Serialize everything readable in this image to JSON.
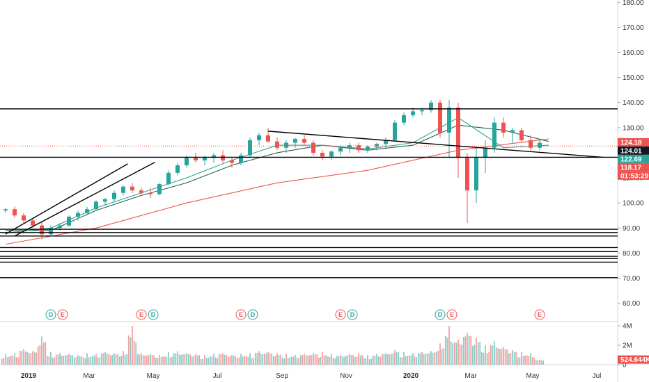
{
  "chart_data": {
    "type": "candlestick",
    "price_axis": {
      "ticks": [
        "180.00",
        "170.00",
        "160.00",
        "150.00",
        "140.00",
        "130.00",
        "120.00",
        "110.00",
        "100.00",
        "90.00",
        "80.00",
        "70.00",
        "60.00"
      ],
      "tick_values": [
        180,
        170,
        160,
        150,
        140,
        130,
        120,
        110,
        100,
        90,
        80,
        70,
        60
      ],
      "ylim": [
        52.7,
        180.9
      ]
    },
    "volume_axis": {
      "ticks": [
        "4M",
        "2M",
        "0"
      ],
      "tick_values": [
        4000000,
        2000000,
        0
      ],
      "ylim": [
        0,
        4300000
      ]
    },
    "time_axis": {
      "labels": [
        "2019",
        "Mar",
        "May",
        "Jul",
        "Sep",
        "Nov",
        "2020",
        "Mar",
        "May",
        "Jul"
      ],
      "bold": [
        true,
        false,
        false,
        false,
        false,
        false,
        true,
        false,
        false,
        false
      ]
    },
    "price_labels": [
      {
        "text": "124.18",
        "value": 124.18,
        "color": "#ef5350"
      },
      {
        "text": "124.01",
        "value": 124.01,
        "color": "#131722"
      },
      {
        "text": "122.69",
        "value": 122.69,
        "color": "#26a69a"
      },
      {
        "text": "118.17",
        "value": 118.17,
        "color": "#ef5350"
      },
      {
        "text": "01:53:29",
        "value": 113.6,
        "color": "#ef5350"
      }
    ],
    "volume_label": {
      "text": "524.644K",
      "value": 524644,
      "color": "#ef5350"
    },
    "horizontal_levels": [
      137.5,
      118.2,
      89.5,
      88.2,
      86.8,
      82.2,
      80.6,
      78.7,
      77.8,
      76.4,
      70.2
    ],
    "trendlines": [
      {
        "from": [
          0.0,
          87.6
        ],
        "to": [
          13.5,
          115.6
        ]
      },
      {
        "from": [
          1.0,
          86.8
        ],
        "to": [
          16.5,
          116.2
        ]
      },
      {
        "from": [
          29.0,
          128.6
        ],
        "to": [
          66.0,
          118.2
        ]
      }
    ],
    "events": [
      {
        "letters": [
          "D",
          "E"
        ],
        "x": 5.0
      },
      {
        "letters": [
          "E",
          "D"
        ],
        "x": 15.0
      },
      {
        "letters": [
          "E",
          "D"
        ],
        "x": 26.0
      },
      {
        "letters": [
          "E",
          "D"
        ],
        "x": 37.0
      },
      {
        "letters": [
          "D",
          "E"
        ],
        "x": 48.0
      },
      {
        "letters": [
          "E"
        ],
        "x": 59.0
      }
    ],
    "candles_weekly": [
      [
        97.0,
        98.0,
        96.0,
        97.5
      ],
      [
        97.5,
        98.5,
        94.0,
        95.0
      ],
      [
        95.0,
        96.0,
        92.0,
        93.0
      ],
      [
        93.0,
        94.0,
        90.0,
        91.0
      ],
      [
        91.0,
        92.5,
        85.5,
        87.5
      ],
      [
        87.5,
        91.0,
        87.0,
        90.0
      ],
      [
        90.0,
        92.0,
        89.0,
        91.0
      ],
      [
        91.0,
        95.0,
        90.5,
        94.5
      ],
      [
        94.5,
        97.0,
        93.0,
        96.0
      ],
      [
        96.0,
        98.5,
        95.0,
        97.5
      ],
      [
        97.5,
        101.0,
        97.0,
        100.5
      ],
      [
        100.5,
        102.0,
        99.0,
        101.5
      ],
      [
        101.5,
        105.0,
        100.5,
        104.0
      ],
      [
        104.0,
        107.0,
        103.0,
        106.5
      ],
      [
        106.5,
        108.0,
        104.0,
        105.0
      ],
      [
        105.0,
        106.0,
        103.0,
        104.0
      ],
      [
        104.0,
        106.0,
        102.0,
        103.5
      ],
      [
        103.5,
        108.0,
        103.0,
        107.5
      ],
      [
        107.5,
        113.0,
        107.0,
        112.0
      ],
      [
        112.0,
        116.0,
        111.0,
        115.0
      ],
      [
        115.0,
        119.0,
        114.0,
        118.0
      ],
      [
        118.0,
        120.0,
        116.0,
        117.0
      ],
      [
        117.0,
        119.0,
        115.0,
        118.0
      ],
      [
        118.0,
        120.0,
        116.0,
        119.0
      ],
      [
        119.0,
        121.0,
        116.0,
        117.0
      ],
      [
        117.0,
        118.0,
        114.0,
        116.0
      ],
      [
        116.0,
        120.0,
        115.0,
        119.0
      ],
      [
        119.0,
        126.0,
        118.0,
        125.0
      ],
      [
        125.0,
        128.0,
        123.0,
        127.0
      ],
      [
        127.0,
        130.0,
        124.0,
        124.5
      ],
      [
        124.5,
        126.0,
        121.0,
        122.0
      ],
      [
        122.0,
        125.0,
        120.0,
        124.0
      ],
      [
        124.0,
        126.0,
        122.0,
        125.5
      ],
      [
        125.5,
        127.0,
        123.0,
        124.0
      ],
      [
        124.0,
        125.0,
        119.0,
        120.0
      ],
      [
        120.0,
        121.0,
        117.0,
        118.5
      ],
      [
        118.5,
        121.0,
        117.0,
        120.5
      ],
      [
        120.5,
        123.0,
        119.0,
        122.0
      ],
      [
        122.0,
        124.0,
        120.0,
        123.0
      ],
      [
        123.0,
        124.0,
        120.0,
        121.0
      ],
      [
        121.0,
        123.0,
        120.0,
        122.5
      ],
      [
        122.5,
        124.0,
        121.0,
        123.5
      ],
      [
        123.5,
        126.0,
        122.0,
        125.0
      ],
      [
        125.0,
        133.0,
        124.5,
        132.0
      ],
      [
        132.0,
        136.0,
        131.0,
        135.0
      ],
      [
        135.0,
        138.0,
        134.0,
        136.5
      ],
      [
        136.5,
        138.0,
        135.0,
        137.0
      ],
      [
        137.0,
        141.0,
        136.0,
        140.0
      ],
      [
        140.0,
        141.0,
        126.0,
        128.0
      ],
      [
        128.0,
        141.0,
        118.0,
        138.0
      ],
      [
        138.0,
        140.0,
        110.0,
        118.0
      ],
      [
        118.0,
        120.0,
        92.0,
        105.0
      ],
      [
        105.0,
        122.0,
        100.0,
        118.0
      ],
      [
        118.0,
        125.0,
        112.0,
        122.0
      ],
      [
        122.0,
        134.0,
        120.0,
        132.0
      ],
      [
        132.0,
        134.0,
        126.0,
        128.0
      ],
      [
        128.0,
        130.0,
        124.0,
        129.0
      ],
      [
        129.0,
        130.0,
        124.0,
        125.0
      ],
      [
        125.0,
        127.0,
        121.0,
        122.0
      ],
      [
        122.0,
        125.5,
        121.0,
        124.01
      ]
    ],
    "volume_weekly": [
      1.1,
      1.2,
      1.6,
      1.4,
      2.9,
      1.3,
      1.2,
      1.1,
      1.0,
      1.2,
      1.1,
      1.3,
      1.2,
      1.4,
      4.0,
      1.2,
      1.1,
      1.0,
      1.3,
      1.4,
      1.2,
      1.1,
      1.0,
      1.1,
      1.2,
      1.0,
      1.1,
      1.2,
      1.4,
      1.3,
      1.2,
      1.1,
      1.0,
      1.1,
      1.2,
      1.3,
      1.1,
      1.0,
      1.1,
      1.2,
      1.0,
      1.1,
      1.2,
      1.5,
      1.3,
      1.2,
      1.3,
      1.4,
      2.2,
      4.0,
      2.6,
      3.3,
      2.8,
      2.0,
      2.4,
      1.8,
      1.5,
      1.3,
      1.2,
      0.52
    ],
    "moving_averages": [
      {
        "color": "#ef5350",
        "points": [
          [
            0,
            83.5
          ],
          [
            10,
            90.0
          ],
          [
            20,
            100.0
          ],
          [
            30,
            108.0
          ],
          [
            40,
            113.0
          ],
          [
            50,
            121.0
          ],
          [
            60,
            125.5
          ]
        ]
      },
      {
        "color": "#2e5e4e",
        "points": [
          [
            0,
            89.0
          ],
          [
            5,
            89.0
          ],
          [
            10,
            97.0
          ],
          [
            15,
            103.0
          ],
          [
            20,
            108.0
          ],
          [
            25,
            115.0
          ],
          [
            30,
            120.0
          ],
          [
            35,
            123.0
          ],
          [
            40,
            121.0
          ],
          [
            45,
            123.0
          ],
          [
            50,
            131.0
          ],
          [
            55,
            129.0
          ],
          [
            60,
            124.5
          ]
        ]
      },
      {
        "color": "#26a69a",
        "points": [
          [
            0,
            88.0
          ],
          [
            5,
            90.0
          ],
          [
            10,
            98.0
          ],
          [
            15,
            104.0
          ],
          [
            20,
            110.0
          ],
          [
            25,
            117.0
          ],
          [
            30,
            123.0
          ],
          [
            35,
            123.0
          ],
          [
            40,
            121.5
          ],
          [
            45,
            124.0
          ],
          [
            50,
            134.0
          ],
          [
            55,
            122.0
          ],
          [
            60,
            123.0
          ]
        ]
      }
    ]
  }
}
